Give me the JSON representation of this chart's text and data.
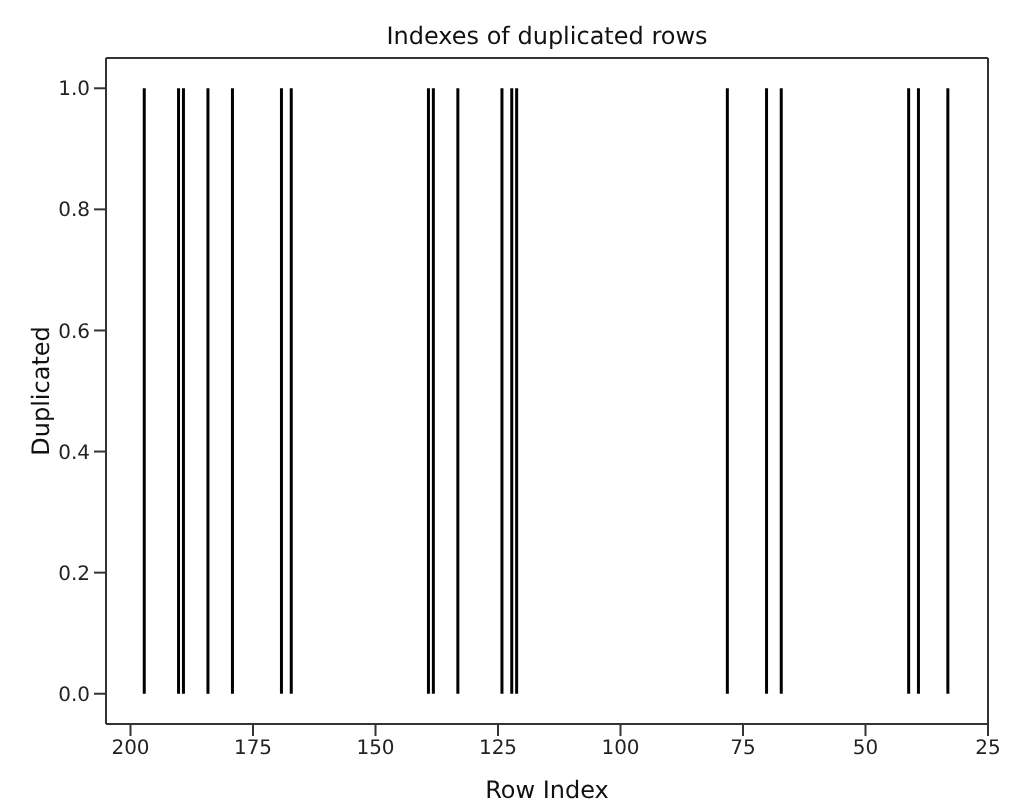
{
  "chart_data": {
    "type": "bar",
    "title": "Indexes of duplicated rows",
    "xlabel": "Row Index",
    "ylabel": "Duplicated",
    "x": [
      197,
      190,
      189,
      184,
      179,
      169,
      167,
      139,
      138,
      133,
      124,
      122,
      121,
      78,
      70,
      67,
      41,
      39,
      33
    ],
    "series": [
      {
        "color": "#000000",
        "values": [
          1,
          1,
          1,
          1,
          1,
          1,
          1,
          1,
          1,
          1,
          1,
          1,
          1,
          1,
          1,
          1,
          1,
          1,
          1
        ]
      }
    ],
    "xlim": [
      205,
      25
    ],
    "xticks": [
      200,
      175,
      150,
      125,
      100,
      75,
      50,
      25
    ],
    "ylim": [
      -0.05,
      1.05
    ],
    "yticks": [
      {
        "value": 0,
        "label": "0.0"
      },
      {
        "value": 0.2,
        "label": "0.2"
      },
      {
        "value": 0.4,
        "label": "0.4"
      },
      {
        "value": 0.6,
        "label": "0.6"
      },
      {
        "value": 0.8,
        "label": "0.8"
      },
      {
        "value": 1,
        "label": "1.0"
      }
    ],
    "grid": false
  }
}
